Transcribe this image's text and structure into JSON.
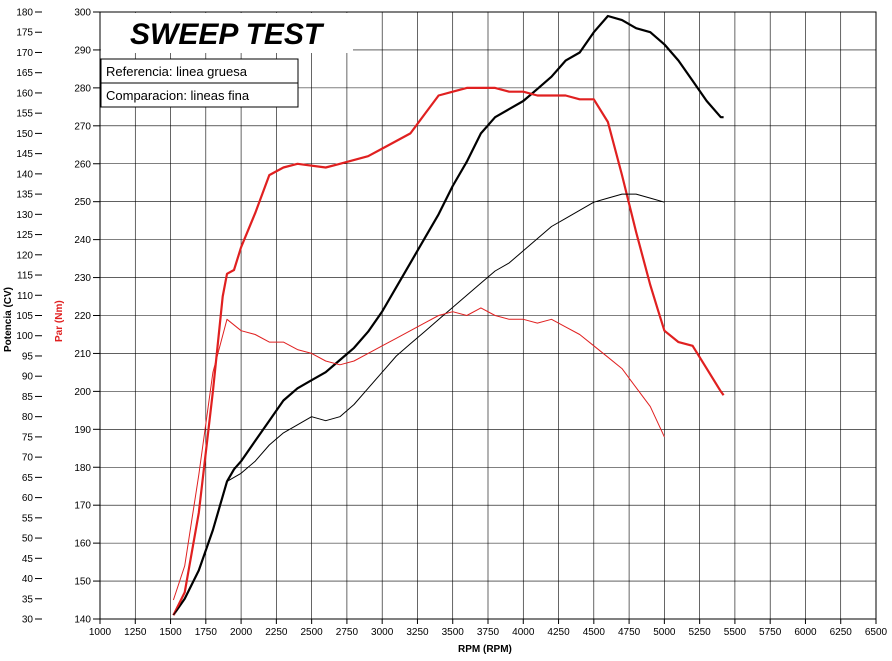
{
  "chart_data": {
    "type": "line",
    "title": "SWEEP TEST",
    "legend": [
      "Referencia: linea gruesa",
      "Comparacion: lineas fina"
    ],
    "xlabel": "RPM (RPM)",
    "ylabel_left": "Potencia (CV)",
    "ylabel_right": "Par (Nm)",
    "xlim": [
      1000,
      6500
    ],
    "ylim_left": [
      30,
      180
    ],
    "ylim_right": [
      140,
      300
    ],
    "x_ticks": [
      "1000",
      "1250",
      "1500",
      "1750",
      "2000",
      "2250",
      "2500",
      "2750",
      "3000",
      "3250",
      "3500",
      "3750",
      "4000",
      "4250",
      "4500",
      "4750",
      "5000",
      "5250",
      "5500",
      "5750",
      "6000",
      "6250",
      "6500"
    ],
    "y_left_ticks": [
      "30",
      "35",
      "40",
      "45",
      "50",
      "55",
      "60",
      "65",
      "70",
      "75",
      "80",
      "85",
      "90",
      "95",
      "100",
      "105",
      "110",
      "115",
      "120",
      "125",
      "130",
      "135",
      "140",
      "145",
      "150",
      "155",
      "160",
      "165",
      "170",
      "175",
      "180"
    ],
    "y_right_ticks": [
      "140",
      "150",
      "160",
      "170",
      "180",
      "190",
      "200",
      "210",
      "220",
      "230",
      "240",
      "250",
      "260",
      "270",
      "280",
      "290",
      "300"
    ],
    "grid": true,
    "colors": {
      "power": "#000000",
      "torque": "#e02020"
    },
    "series": [
      {
        "name": "Potencia Referencia",
        "axis": "left",
        "color": "#000000",
        "weight": "thick",
        "x": [
          1520,
          1600,
          1700,
          1800,
          1900,
          1950,
          2000,
          2100,
          2200,
          2300,
          2400,
          2500,
          2600,
          2700,
          2800,
          2900,
          3000,
          3100,
          3200,
          3300,
          3400,
          3500,
          3600,
          3700,
          3800,
          3900,
          4000,
          4100,
          4200,
          4300,
          4400,
          4500,
          4600,
          4700,
          4800,
          4900,
          5000,
          5100,
          5200,
          5300,
          5400,
          5420
        ],
        "y": [
          31,
          35,
          42,
          52,
          64,
          67,
          69,
          74,
          79,
          84,
          87,
          89,
          91,
          94,
          97,
          101,
          106,
          112,
          118,
          124,
          130,
          137,
          143,
          150,
          154,
          156,
          158,
          161,
          164,
          168,
          170,
          175,
          179,
          178,
          176,
          175,
          172,
          168,
          163,
          158,
          154,
          154
        ]
      },
      {
        "name": "Par Referencia",
        "axis": "right",
        "color": "#e02020",
        "weight": "thick",
        "x": [
          1520,
          1600,
          1700,
          1800,
          1870,
          1900,
          1950,
          2000,
          2100,
          2200,
          2300,
          2400,
          2600,
          2700,
          2900,
          3000,
          3200,
          3300,
          3400,
          3500,
          3600,
          3700,
          3800,
          3900,
          4000,
          4100,
          4200,
          4300,
          4400,
          4500,
          4600,
          4700,
          4800,
          4900,
          4950,
          5000,
          5100,
          5200,
          5300,
          5400,
          5420
        ],
        "y": [
          141,
          147,
          168,
          200,
          225,
          231,
          232,
          238,
          247,
          257,
          259,
          260,
          259,
          260,
          262,
          264,
          268,
          273,
          278,
          279,
          280,
          280,
          280,
          279,
          279,
          278,
          278,
          278,
          277,
          277,
          271,
          257,
          242,
          228,
          222,
          216,
          213,
          212,
          206,
          200,
          199
        ]
      },
      {
        "name": "Potencia Comparacion",
        "axis": "left",
        "color": "#000000",
        "weight": "thin",
        "x": [
          1520,
          1600,
          1700,
          1800,
          1900,
          2000,
          2100,
          2200,
          2300,
          2400,
          2500,
          2600,
          2700,
          2800,
          2900,
          3000,
          3100,
          3200,
          3300,
          3400,
          3500,
          3600,
          3700,
          3800,
          3900,
          4000,
          4100,
          4200,
          4300,
          4400,
          4500,
          4600,
          4700,
          4800,
          4900,
          5000
        ],
        "y": [
          31,
          35,
          42,
          52,
          64,
          66,
          69,
          73,
          76,
          78,
          80,
          79,
          80,
          83,
          87,
          91,
          95,
          98,
          101,
          104,
          107,
          110,
          113,
          116,
          118,
          121,
          124,
          127,
          129,
          131,
          133,
          134,
          135,
          135,
          134,
          133
        ]
      },
      {
        "name": "Par Comparacion",
        "axis": "right",
        "color": "#e02020",
        "weight": "thin",
        "x": [
          1520,
          1600,
          1700,
          1800,
          1900,
          2000,
          2100,
          2200,
          2300,
          2400,
          2500,
          2600,
          2700,
          2800,
          2900,
          3000,
          3100,
          3200,
          3300,
          3400,
          3500,
          3600,
          3700,
          3800,
          3900,
          4000,
          4100,
          4200,
          4300,
          4400,
          4500,
          4600,
          4700,
          4800,
          4900,
          5000
        ],
        "y": [
          145,
          154,
          178,
          205,
          219,
          216,
          215,
          213,
          213,
          211,
          210,
          208,
          207,
          208,
          210,
          212,
          214,
          216,
          218,
          220,
          221,
          220,
          222,
          220,
          219,
          219,
          218,
          219,
          217,
          215,
          212,
          209,
          206,
          201,
          196,
          188
        ]
      }
    ]
  }
}
